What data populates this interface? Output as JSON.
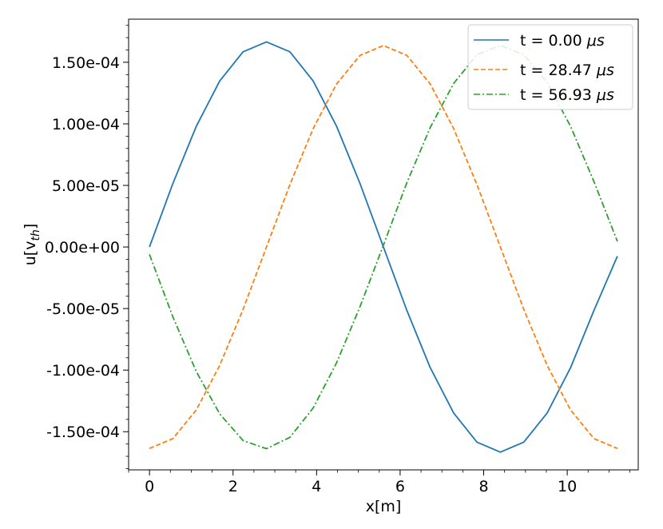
{
  "chart_data": {
    "type": "line",
    "xlabel": "x[m]",
    "ylabel_main": "u[v",
    "ylabel_sub": "th",
    "ylabel_close": "]",
    "xlim": [
      -0.5,
      11.7
    ],
    "ylim": [
      -0.000181,
      0.000185
    ],
    "x_ticks": [
      {
        "value": 0,
        "label": "0"
      },
      {
        "value": 2,
        "label": "2"
      },
      {
        "value": 4,
        "label": "4"
      },
      {
        "value": 6,
        "label": "6"
      },
      {
        "value": 8,
        "label": "8"
      },
      {
        "value": 10,
        "label": "10"
      }
    ],
    "y_ticks": [
      {
        "value": 0.00015,
        "label": "1.50e-04"
      },
      {
        "value": 0.0001,
        "label": "1.00e-04"
      },
      {
        "value": 5e-05,
        "label": "5.00e-05"
      },
      {
        "value": 0,
        "label": "0.00e+00"
      },
      {
        "value": -5e-05,
        "label": "-5.00e-05"
      },
      {
        "value": -0.0001,
        "label": "-1.00e-04"
      },
      {
        "value": -0.00015,
        "label": "-1.50e-04"
      }
    ],
    "grid": false,
    "legend_position": "top-right",
    "x": [
      0,
      0.56,
      1.12,
      1.68,
      2.24,
      2.8,
      3.36,
      3.92,
      4.48,
      5.04,
      5.6,
      6.16,
      6.72,
      7.28,
      7.84,
      8.4,
      8.96,
      9.52,
      10.08,
      10.64,
      11.2
    ],
    "series": [
      {
        "name_prefix": "t = 0.00 ",
        "name_unit": "μs",
        "color": "#1f77b4",
        "dash": "solid",
        "values": [
          0,
          5.15e-05,
          9.8e-05,
          0.0001348,
          0.0001585,
          0.0001666,
          0.0001585,
          0.0001348,
          9.8e-05,
          5.15e-05,
          0,
          -5.15e-05,
          -9.8e-05,
          -0.0001348,
          -0.0001585,
          -0.0001666,
          -0.0001585,
          -0.0001348,
          -9.8e-05,
          -5.15e-05,
          -7.5e-06
        ]
      },
      {
        "name_prefix": "t = 28.47 ",
        "name_unit": "μs",
        "color": "#ff7f0e",
        "dash": "dashed",
        "values": [
          -0.0001636,
          -0.0001556,
          -0.0001324,
          -9.62e-05,
          -5.06e-05,
          0,
          5.06e-05,
          9.62e-05,
          0.0001324,
          0.0001556,
          0.0001636,
          0.0001556,
          0.0001324,
          9.62e-05,
          5.06e-05,
          0,
          -5.06e-05,
          -9.62e-05,
          -0.0001324,
          -0.0001556,
          -0.0001636
        ]
      },
      {
        "name_prefix": "t = 56.93 ",
        "name_unit": "μs",
        "color": "#2ca02c",
        "dash": "dashdot",
        "values": [
          -6e-06,
          -5.67e-05,
          -0.0001011,
          -0.0001355,
          -0.0001572,
          -0.0001638,
          -0.0001546,
          -0.0001307,
          -9.4e-05,
          -4.85e-05,
          1.5e-06,
          5.21e-05,
          9.7e-05,
          0.0001328,
          0.0001562,
          0.0001638,
          0.0001562,
          0.0001335,
          9.8e-05,
          5.3e-05,
          4.5e-06
        ]
      }
    ]
  }
}
